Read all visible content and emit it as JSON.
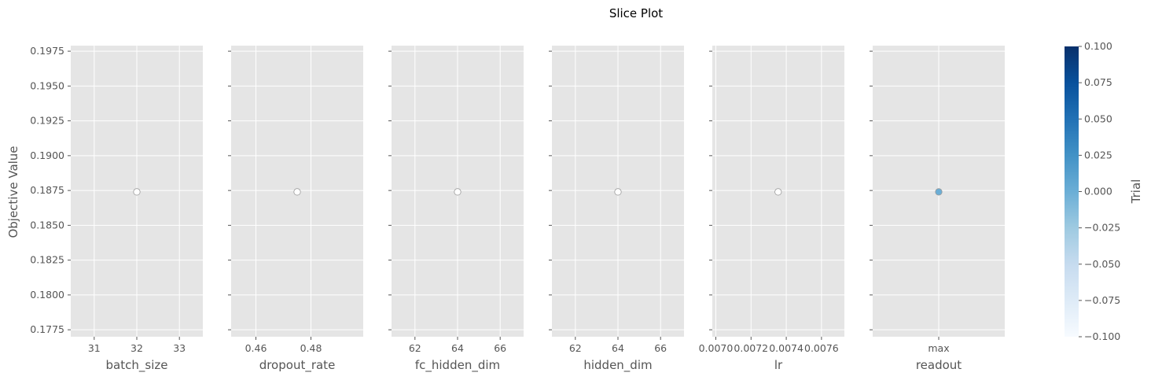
{
  "chart_data": {
    "type": "scatter",
    "title": "Slice Plot",
    "ylabel": "Objective Value",
    "ylim": [
      0.177,
      0.1979
    ],
    "y_ticks": [
      "0.1775",
      "0.1800",
      "0.1825",
      "0.1850",
      "0.1875",
      "0.1900",
      "0.1925",
      "0.1950",
      "0.1975"
    ],
    "grid": true,
    "background": "#e5e5e5",
    "panels": [
      {
        "xlabel": "batch_size",
        "xlim": [
          30.45,
          33.55
        ],
        "x_ticks": [
          {
            "value": 31,
            "label": "31"
          },
          {
            "value": 32,
            "label": "32"
          },
          {
            "value": 33,
            "label": "33"
          }
        ],
        "points": [
          {
            "x": 32,
            "y": 0.1874,
            "trial": null
          }
        ]
      },
      {
        "xlabel": "dropout_rate",
        "xlim": [
          0.451,
          0.499
        ],
        "x_ticks": [
          {
            "value": 0.46,
            "label": "0.46"
          },
          {
            "value": 0.48,
            "label": "0.48"
          }
        ],
        "points": [
          {
            "x": 0.475,
            "y": 0.1874,
            "trial": null
          }
        ]
      },
      {
        "xlabel": "fc_hidden_dim",
        "xlim": [
          60.9,
          67.1
        ],
        "x_ticks": [
          {
            "value": 62,
            "label": "62"
          },
          {
            "value": 64,
            "label": "64"
          },
          {
            "value": 66,
            "label": "66"
          }
        ],
        "points": [
          {
            "x": 64,
            "y": 0.1874,
            "trial": null
          }
        ]
      },
      {
        "xlabel": "hidden_dim",
        "xlim": [
          60.9,
          67.1
        ],
        "x_ticks": [
          {
            "value": 62,
            "label": "62"
          },
          {
            "value": 64,
            "label": "64"
          },
          {
            "value": 66,
            "label": "66"
          }
        ],
        "points": [
          {
            "x": 64,
            "y": 0.1874,
            "trial": null
          }
        ]
      },
      {
        "xlabel": "lr",
        "xlim": [
          0.00698,
          0.00773
        ],
        "x_ticks": [
          {
            "value": 0.007,
            "label": "0.0070"
          },
          {
            "value": 0.0072,
            "label": "0.0072"
          },
          {
            "value": 0.0074,
            "label": "0.0074"
          },
          {
            "value": 0.0076,
            "label": "0.0076"
          }
        ],
        "points": [
          {
            "x": 0.007354,
            "y": 0.1874,
            "trial": null
          }
        ]
      },
      {
        "xlabel": "readout",
        "xlim": [
          -1,
          1
        ],
        "x_ticks": [
          {
            "value": 0,
            "label": "max"
          }
        ],
        "points": [
          {
            "x": 0,
            "y": 0.1874,
            "trial": 0
          }
        ]
      }
    ],
    "colorbar": {
      "label": "Trial",
      "range": [
        -0.1,
        0.1
      ],
      "ticks": [
        "0.100",
        "0.075",
        "0.050",
        "0.025",
        "0.000",
        "−0.025",
        "−0.050",
        "−0.075",
        "−0.100"
      ],
      "colormap": "Blues",
      "color_low": "#f7fbff",
      "color_high": "#08306b"
    },
    "colors": {
      "grid": "#ffffff",
      "empty_marker_fill": "#ffffff",
      "marker_edge": "#999999",
      "filled_marker": "#6baed6",
      "tick_text": "#555555"
    }
  }
}
